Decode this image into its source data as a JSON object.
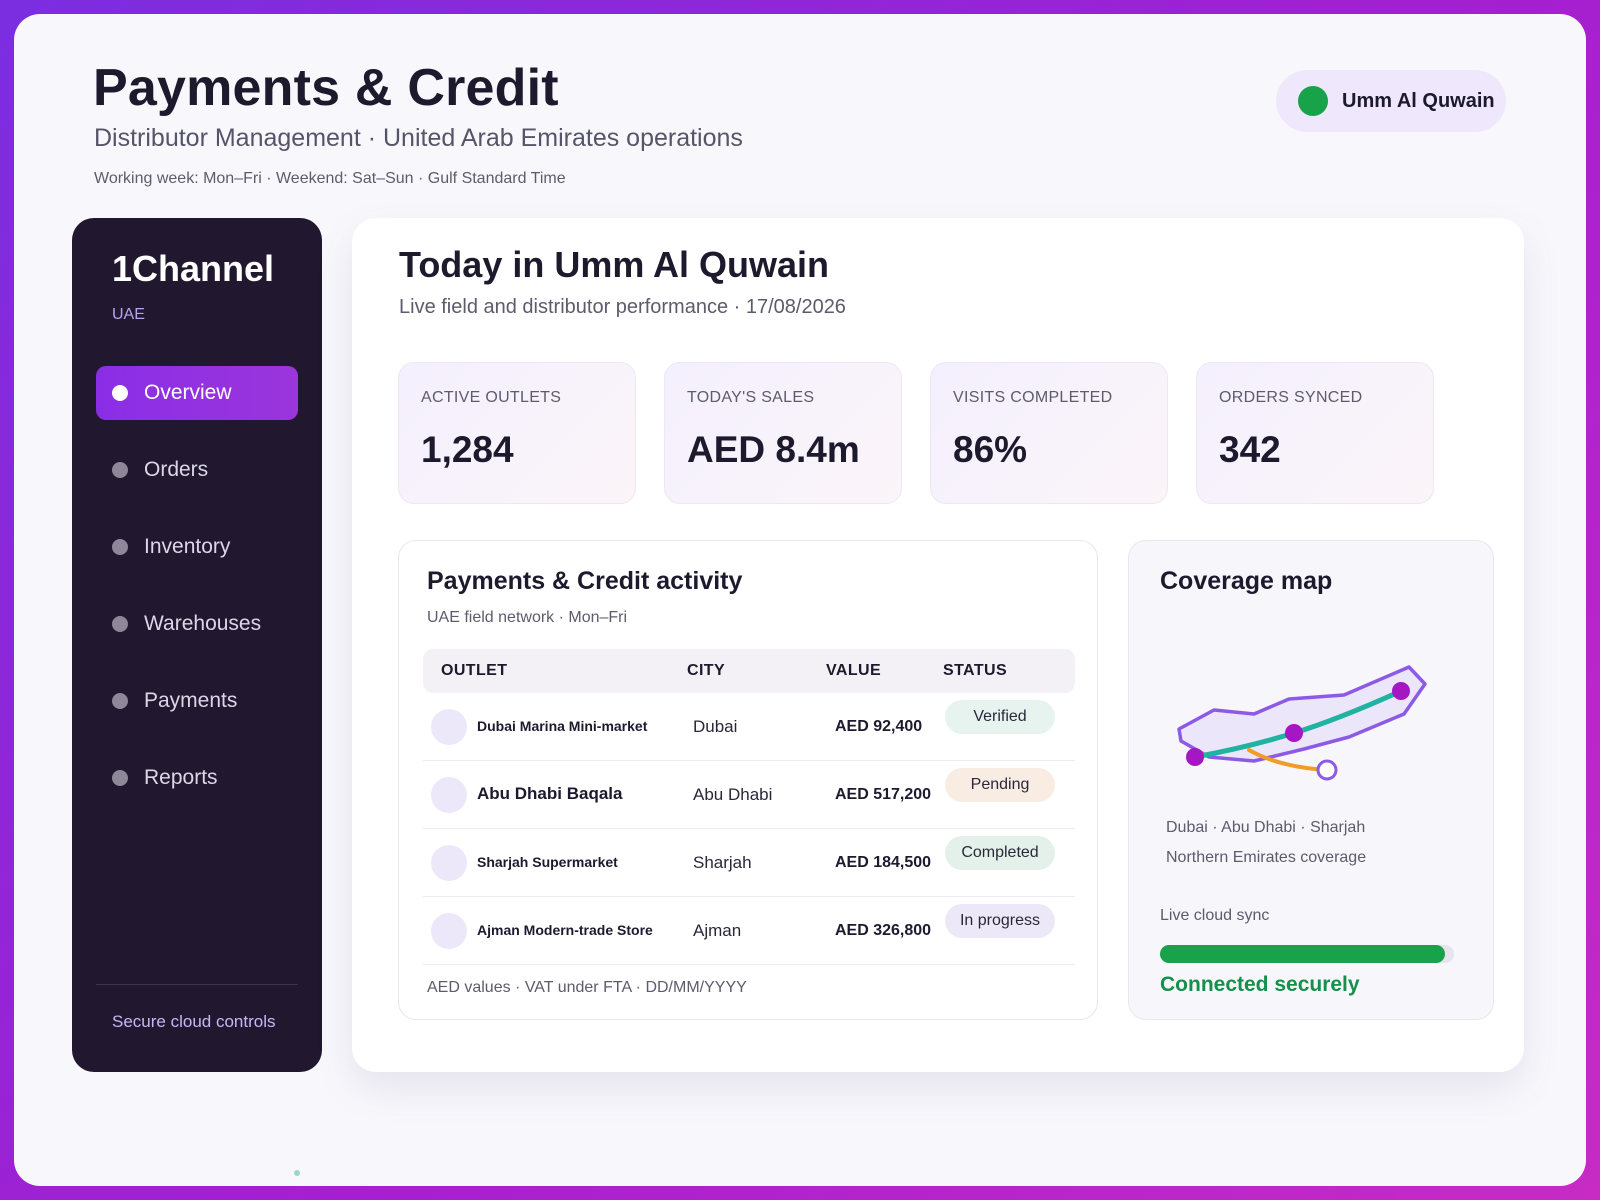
{
  "header": {
    "title": "Payments & Credit",
    "subtitle": "Distributor Management · United Arab Emirates operations",
    "meta": "Working week: Mon–Fri · Weekend: Sat–Sun · Gulf Standard Time",
    "region": "Umm Al Quwain"
  },
  "sidebar": {
    "brand": "1Channel",
    "brand_sub": "UAE",
    "items": [
      {
        "label": "Overview",
        "active": true
      },
      {
        "label": "Orders"
      },
      {
        "label": "Inventory"
      },
      {
        "label": "Warehouses"
      },
      {
        "label": "Payments"
      },
      {
        "label": "Reports"
      }
    ],
    "footer": "Secure cloud controls"
  },
  "main": {
    "title": "Today in Umm Al Quwain",
    "subtitle": "Live field and distributor performance · 17/08/2026",
    "kpis": [
      {
        "label": "ACTIVE OUTLETS",
        "value": "1,284"
      },
      {
        "label": "TODAY'S SALES",
        "value": "AED 8.4m"
      },
      {
        "label": "VISITS COMPLETED",
        "value": "86%"
      },
      {
        "label": "ORDERS SYNCED",
        "value": "342"
      }
    ]
  },
  "activity": {
    "title": "Payments & Credit activity",
    "subtitle": "UAE field network · Mon–Fri",
    "columns": [
      "OUTLET",
      "CITY",
      "VALUE",
      "STATUS"
    ],
    "rows": [
      {
        "outlet": "Dubai Marina Mini-market",
        "city": "Dubai",
        "value": "AED 92,400",
        "status": "Verified"
      },
      {
        "outlet": "Abu Dhabi Baqala",
        "city": "Abu Dhabi",
        "value": "AED 517,200",
        "status": "Pending"
      },
      {
        "outlet": "Sharjah Supermarket",
        "city": "Sharjah",
        "value": "AED 184,500",
        "status": "Completed"
      },
      {
        "outlet": "Ajman Modern-trade Store",
        "city": "Ajman",
        "value": "AED 326,800",
        "status": "In progress"
      }
    ],
    "footer": "AED values · VAT under FTA · DD/MM/YYYY"
  },
  "coverage": {
    "title": "Coverage map",
    "line1": "Dubai · Abu Dhabi · Sharjah",
    "line2": "Northern Emirates coverage",
    "sync_label": "Live cloud sync",
    "sync_progress": 0.97,
    "sync_status": "Connected securely"
  },
  "colors": {
    "accent": "#8a2ee6",
    "success": "#18a24a",
    "verified_bg": "#e6f3ee",
    "pending_bg": "#f9ece3",
    "completed_bg": "#e3f1ea",
    "in_progress_bg": "#ede8f8"
  }
}
